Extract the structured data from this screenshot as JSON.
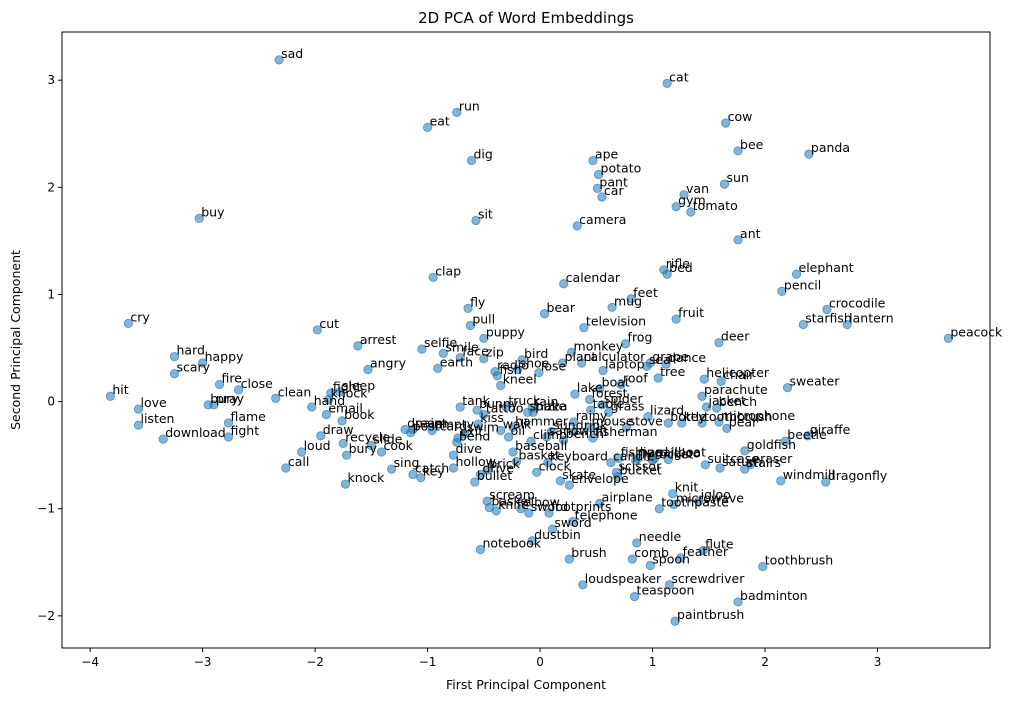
{
  "chart_data": {
    "type": "scatter",
    "title": "2D PCA of Word Embeddings",
    "xlabel": "First Principal Component",
    "ylabel": "Second Principal Component",
    "xlim": [
      -4.25,
      4.0
    ],
    "ylim": [
      -2.3,
      3.45
    ],
    "xticks": [
      -4,
      -3,
      -2,
      -1,
      0,
      1,
      2,
      3
    ],
    "yticks": [
      -2,
      -1,
      0,
      1,
      2,
      3
    ],
    "grid": false,
    "point_color": "#1f77b4",
    "points": [
      {
        "label": "sad",
        "x": -2.32,
        "y": 3.19
      },
      {
        "label": "cat",
        "x": 1.13,
        "y": 2.97
      },
      {
        "label": "run",
        "x": -0.74,
        "y": 2.7
      },
      {
        "label": "eat",
        "x": -1.0,
        "y": 2.56
      },
      {
        "label": "cow",
        "x": 1.65,
        "y": 2.6
      },
      {
        "label": "bee",
        "x": 1.76,
        "y": 2.34
      },
      {
        "label": "panda",
        "x": 2.39,
        "y": 2.31
      },
      {
        "label": "dig",
        "x": -0.61,
        "y": 2.25
      },
      {
        "label": "ape",
        "x": 0.47,
        "y": 2.25
      },
      {
        "label": "potato",
        "x": 0.52,
        "y": 2.12
      },
      {
        "label": "sun",
        "x": 1.64,
        "y": 2.03
      },
      {
        "label": "pant",
        "x": 0.51,
        "y": 1.99
      },
      {
        "label": "van",
        "x": 1.28,
        "y": 1.93
      },
      {
        "label": "car",
        "x": 0.55,
        "y": 1.91
      },
      {
        "label": "gym",
        "x": 1.21,
        "y": 1.82
      },
      {
        "label": "tomato",
        "x": 1.34,
        "y": 1.77
      },
      {
        "label": "buy",
        "x": -3.03,
        "y": 1.71
      },
      {
        "label": "sit",
        "x": -0.57,
        "y": 1.69
      },
      {
        "label": "camera",
        "x": 0.33,
        "y": 1.64
      },
      {
        "label": "ant",
        "x": 1.76,
        "y": 1.51
      },
      {
        "label": "rifle",
        "x": 1.1,
        "y": 1.23
      },
      {
        "label": "bed",
        "x": 1.13,
        "y": 1.19
      },
      {
        "label": "elephant",
        "x": 2.28,
        "y": 1.19
      },
      {
        "label": "clap",
        "x": -0.95,
        "y": 1.16
      },
      {
        "label": "calendar",
        "x": 0.21,
        "y": 1.1
      },
      {
        "label": "pencil",
        "x": 2.15,
        "y": 1.03
      },
      {
        "label": "feet",
        "x": 0.81,
        "y": 0.96
      },
      {
        "label": "fly",
        "x": -0.64,
        "y": 0.87
      },
      {
        "label": "mug",
        "x": 0.64,
        "y": 0.88
      },
      {
        "label": "crocodile",
        "x": 2.55,
        "y": 0.86
      },
      {
        "label": "bear",
        "x": 0.04,
        "y": 0.82
      },
      {
        "label": "fruit",
        "x": 1.21,
        "y": 0.77
      },
      {
        "label": "starfish",
        "x": 2.34,
        "y": 0.72
      },
      {
        "label": "lantern",
        "x": 2.73,
        "y": 0.72
      },
      {
        "label": "cry",
        "x": -3.66,
        "y": 0.73
      },
      {
        "label": "pull",
        "x": -0.62,
        "y": 0.71
      },
      {
        "label": "cut",
        "x": -1.98,
        "y": 0.67
      },
      {
        "label": "television",
        "x": 0.39,
        "y": 0.69
      },
      {
        "label": "peacock",
        "x": 3.63,
        "y": 0.59
      },
      {
        "label": "puppy",
        "x": -0.5,
        "y": 0.59
      },
      {
        "label": "arrest",
        "x": -1.62,
        "y": 0.52
      },
      {
        "label": "selfie",
        "x": -1.05,
        "y": 0.49
      },
      {
        "label": "deer",
        "x": 1.59,
        "y": 0.55
      },
      {
        "label": "frog",
        "x": 0.76,
        "y": 0.54
      },
      {
        "label": "smile",
        "x": -0.86,
        "y": 0.45
      },
      {
        "label": "monkey",
        "x": 0.28,
        "y": 0.46
      },
      {
        "label": "face",
        "x": -0.71,
        "y": 0.41
      },
      {
        "label": "zip",
        "x": -0.5,
        "y": 0.4
      },
      {
        "label": "hard",
        "x": -3.25,
        "y": 0.42
      },
      {
        "label": "happy",
        "x": -3.0,
        "y": 0.36
      },
      {
        "label": "bird",
        "x": -0.16,
        "y": 0.39
      },
      {
        "label": "plant",
        "x": 0.2,
        "y": 0.36
      },
      {
        "label": "calculator",
        "x": 0.37,
        "y": 0.36
      },
      {
        "label": "grape",
        "x": 0.98,
        "y": 0.36
      },
      {
        "label": "sea",
        "x": 0.95,
        "y": 0.33
      },
      {
        "label": "dance",
        "x": 1.12,
        "y": 0.35
      },
      {
        "label": "earth",
        "x": -0.91,
        "y": 0.31
      },
      {
        "label": "angry",
        "x": -1.53,
        "y": 0.3
      },
      {
        "label": "laptop",
        "x": 0.56,
        "y": 0.29
      },
      {
        "label": "radio",
        "x": -0.4,
        "y": 0.28
      },
      {
        "label": "shoe",
        "x": -0.2,
        "y": 0.3
      },
      {
        "label": "lose",
        "x": -0.01,
        "y": 0.27
      },
      {
        "label": "fish",
        "x": -0.38,
        "y": 0.24
      },
      {
        "label": "tree",
        "x": 1.05,
        "y": 0.22
      },
      {
        "label": "scary",
        "x": -3.25,
        "y": 0.26
      },
      {
        "label": "helicopter",
        "x": 1.46,
        "y": 0.21
      },
      {
        "label": "chair",
        "x": 1.61,
        "y": 0.19
      },
      {
        "label": "fire",
        "x": -2.85,
        "y": 0.16
      },
      {
        "label": "roof",
        "x": 0.72,
        "y": 0.16
      },
      {
        "label": "kneel",
        "x": -0.35,
        "y": 0.15
      },
      {
        "label": "sweater",
        "x": 2.2,
        "y": 0.13
      },
      {
        "label": "close",
        "x": -2.68,
        "y": 0.11
      },
      {
        "label": "boat",
        "x": 0.53,
        "y": 0.12
      },
      {
        "label": "sleep",
        "x": -1.78,
        "y": 0.09
      },
      {
        "label": "fight",
        "x": -1.86,
        "y": 0.08
      },
      {
        "label": "lake",
        "x": 0.31,
        "y": 0.07
      },
      {
        "label": "parachute",
        "x": 1.44,
        "y": 0.05
      },
      {
        "label": "hit",
        "x": -3.82,
        "y": 0.05
      },
      {
        "label": "clean",
        "x": -2.35,
        "y": 0.03
      },
      {
        "label": "forest",
        "x": 0.44,
        "y": 0.02
      },
      {
        "label": "knock",
        "x": -1.88,
        "y": 0.02
      },
      {
        "label": "bury",
        "x": -2.95,
        "y": -0.03
      },
      {
        "label": "pray",
        "x": -2.9,
        "y": -0.03
      },
      {
        "label": "hand",
        "x": -2.03,
        "y": -0.05
      },
      {
        "label": "tank",
        "x": -0.71,
        "y": -0.05
      },
      {
        "label": "spider",
        "x": 0.55,
        "y": -0.03
      },
      {
        "label": "jacket",
        "x": 1.48,
        "y": -0.05
      },
      {
        "label": "bench",
        "x": 1.57,
        "y": -0.06
      },
      {
        "label": "truck",
        "x": -0.3,
        "y": -0.05
      },
      {
        "label": "love",
        "x": -3.57,
        "y": -0.07
      },
      {
        "label": "bunny",
        "x": -0.56,
        "y": -0.08
      },
      {
        "label": "rain",
        "x": -0.07,
        "y": -0.06
      },
      {
        "label": "table",
        "x": 0.45,
        "y": -0.08
      },
      {
        "label": "snake",
        "x": -0.11,
        "y": -0.1
      },
      {
        "label": "pizza",
        "x": -0.06,
        "y": -0.1
      },
      {
        "label": "grass",
        "x": 0.61,
        "y": -0.1
      },
      {
        "label": "email",
        "x": -1.9,
        "y": -0.12
      },
      {
        "label": "tattoo",
        "x": -0.5,
        "y": -0.12
      },
      {
        "label": "lizard",
        "x": 0.96,
        "y": -0.14
      },
      {
        "label": "book",
        "x": -1.76,
        "y": -0.18
      },
      {
        "label": "microphone",
        "x": 1.59,
        "y": -0.19
      },
      {
        "label": "bottle",
        "x": 1.14,
        "y": -0.2
      },
      {
        "label": "key",
        "x": 1.26,
        "y": -0.2
      },
      {
        "label": "flame",
        "x": -2.77,
        "y": -0.2
      },
      {
        "label": "toothbrush",
        "x": 1.44,
        "y": -0.2
      },
      {
        "label": "rainy",
        "x": 0.3,
        "y": -0.19
      },
      {
        "label": "kiss",
        "x": -0.55,
        "y": -0.21
      },
      {
        "label": "listen",
        "x": -3.57,
        "y": -0.22
      },
      {
        "label": "mouse",
        "x": 0.44,
        "y": -0.24
      },
      {
        "label": "hammer",
        "x": -0.24,
        "y": -0.24
      },
      {
        "label": "stove",
        "x": 0.77,
        "y": -0.24
      },
      {
        "label": "pear",
        "x": 1.66,
        "y": -0.25
      },
      {
        "label": "dream",
        "x": -1.2,
        "y": -0.26
      },
      {
        "label": "paint",
        "x": -1.13,
        "y": -0.26
      },
      {
        "label": "empty",
        "x": -0.96,
        "y": -0.27
      },
      {
        "label": "walk",
        "x": -0.35,
        "y": -0.27
      },
      {
        "label": "sun",
        "x": 0.1,
        "y": -0.28
      },
      {
        "label": "drink",
        "x": 0.3,
        "y": -0.28
      },
      {
        "label": "postcard",
        "x": -1.15,
        "y": -0.29
      },
      {
        "label": "swim",
        "x": -0.67,
        "y": -0.3
      },
      {
        "label": "fight",
        "x": -2.77,
        "y": -0.33
      },
      {
        "label": "draw",
        "x": -1.95,
        "y": -0.32
      },
      {
        "label": "exit",
        "x": -0.73,
        "y": -0.34
      },
      {
        "label": "oil",
        "x": -0.28,
        "y": -0.33
      },
      {
        "label": "sandwich",
        "x": 0.06,
        "y": -0.33
      },
      {
        "label": "giraffe",
        "x": 2.38,
        "y": -0.32
      },
      {
        "label": "bench",
        "x": 0.21,
        "y": -0.36
      },
      {
        "label": "fisherman",
        "x": 0.47,
        "y": -0.34
      },
      {
        "label": "download",
        "x": -3.35,
        "y": -0.35
      },
      {
        "label": "climb",
        "x": -0.08,
        "y": -0.37
      },
      {
        "label": "bend",
        "x": -0.74,
        "y": -0.38
      },
      {
        "label": "beetle",
        "x": 2.18,
        "y": -0.37
      },
      {
        "label": "recycle",
        "x": -1.75,
        "y": -0.39
      },
      {
        "label": "slide",
        "x": -1.5,
        "y": -0.41
      },
      {
        "label": "goldfish",
        "x": 1.82,
        "y": -0.46
      },
      {
        "label": "loud",
        "x": -2.12,
        "y": -0.47
      },
      {
        "label": "baseball",
        "x": -0.24,
        "y": -0.47
      },
      {
        "label": "cook",
        "x": -1.41,
        "y": -0.47
      },
      {
        "label": "bury",
        "x": -1.72,
        "y": -0.5
      },
      {
        "label": "dive",
        "x": -0.77,
        "y": -0.5
      },
      {
        "label": "fishing",
        "x": 0.7,
        "y": -0.53
      },
      {
        "label": "hard",
        "x": 0.87,
        "y": -0.53
      },
      {
        "label": "sailboat",
        "x": 1.02,
        "y": -0.53
      },
      {
        "label": "igloo",
        "x": 1.14,
        "y": -0.54
      },
      {
        "label": "basket",
        "x": -0.21,
        "y": -0.56
      },
      {
        "label": "keyboard",
        "x": 0.07,
        "y": -0.57
      },
      {
        "label": "candle",
        "x": 0.63,
        "y": -0.57
      },
      {
        "label": "fly",
        "x": 0.85,
        "y": -0.55
      },
      {
        "label": "rocket",
        "x": 1.0,
        "y": -0.55
      },
      {
        "label": "suitcase",
        "x": 1.47,
        "y": -0.59
      },
      {
        "label": "eraser",
        "x": 1.87,
        "y": -0.59
      },
      {
        "label": "hollow",
        "x": -0.77,
        "y": -0.62
      },
      {
        "label": "sing",
        "x": -1.32,
        "y": -0.63
      },
      {
        "label": "call",
        "x": -2.26,
        "y": -0.62
      },
      {
        "label": "saturn",
        "x": 1.6,
        "y": -0.62
      },
      {
        "label": "stairs",
        "x": 1.82,
        "y": -0.63
      },
      {
        "label": "brick",
        "x": -0.47,
        "y": -0.64
      },
      {
        "label": "clock",
        "x": -0.03,
        "y": -0.66
      },
      {
        "label": "scissor",
        "x": 0.68,
        "y": -0.66
      },
      {
        "label": "drive",
        "x": -0.53,
        "y": -0.68
      },
      {
        "label": "catch",
        "x": -1.13,
        "y": -0.68
      },
      {
        "label": "key",
        "x": -1.06,
        "y": -0.71
      },
      {
        "label": "bucket",
        "x": 0.69,
        "y": -0.7
      },
      {
        "label": "skate",
        "x": 0.18,
        "y": -0.74
      },
      {
        "label": "windmill",
        "x": 2.14,
        "y": -0.74
      },
      {
        "label": "dragonfly",
        "x": 2.54,
        "y": -0.75
      },
      {
        "label": "bullet",
        "x": -0.58,
        "y": -0.75
      },
      {
        "label": "envelope",
        "x": 0.26,
        "y": -0.78
      },
      {
        "label": "knock",
        "x": -1.73,
        "y": -0.77
      },
      {
        "label": "knit",
        "x": 1.18,
        "y": -0.86
      },
      {
        "label": "scream",
        "x": -0.47,
        "y": -0.93
      },
      {
        "label": "igloo",
        "x": 1.41,
        "y": -0.93
      },
      {
        "label": "airplane",
        "x": 0.53,
        "y": -0.95
      },
      {
        "label": "microwave",
        "x": 1.19,
        "y": -0.96
      },
      {
        "label": "basket",
        "x": -0.45,
        "y": -0.99
      },
      {
        "label": "elbow",
        "x": -0.17,
        "y": -1.0
      },
      {
        "label": "toothpaste",
        "x": 1.06,
        "y": -1.0
      },
      {
        "label": "knife",
        "x": -0.39,
        "y": -1.02
      },
      {
        "label": "sword",
        "x": -0.1,
        "y": -1.04
      },
      {
        "label": "footprints",
        "x": 0.08,
        "y": -1.04
      },
      {
        "label": "telephone",
        "x": 0.29,
        "y": -1.12
      },
      {
        "label": "sword",
        "x": 0.11,
        "y": -1.19
      },
      {
        "label": "dustbin",
        "x": -0.07,
        "y": -1.3
      },
      {
        "label": "needle",
        "x": 0.86,
        "y": -1.32
      },
      {
        "label": "notebook",
        "x": -0.53,
        "y": -1.38
      },
      {
        "label": "flute",
        "x": 1.45,
        "y": -1.39
      },
      {
        "label": "brush",
        "x": 0.26,
        "y": -1.47
      },
      {
        "label": "comb",
        "x": 0.82,
        "y": -1.47
      },
      {
        "label": "feather",
        "x": 1.25,
        "y": -1.46
      },
      {
        "label": "spoon",
        "x": 0.98,
        "y": -1.53
      },
      {
        "label": "toothbrush",
        "x": 1.98,
        "y": -1.54
      },
      {
        "label": "loudspeaker",
        "x": 0.38,
        "y": -1.71
      },
      {
        "label": "screwdriver",
        "x": 1.15,
        "y": -1.71
      },
      {
        "label": "teaspoon",
        "x": 0.84,
        "y": -1.82
      },
      {
        "label": "badminton",
        "x": 1.76,
        "y": -1.87
      },
      {
        "label": "paintbrush",
        "x": 1.2,
        "y": -2.05
      }
    ]
  }
}
